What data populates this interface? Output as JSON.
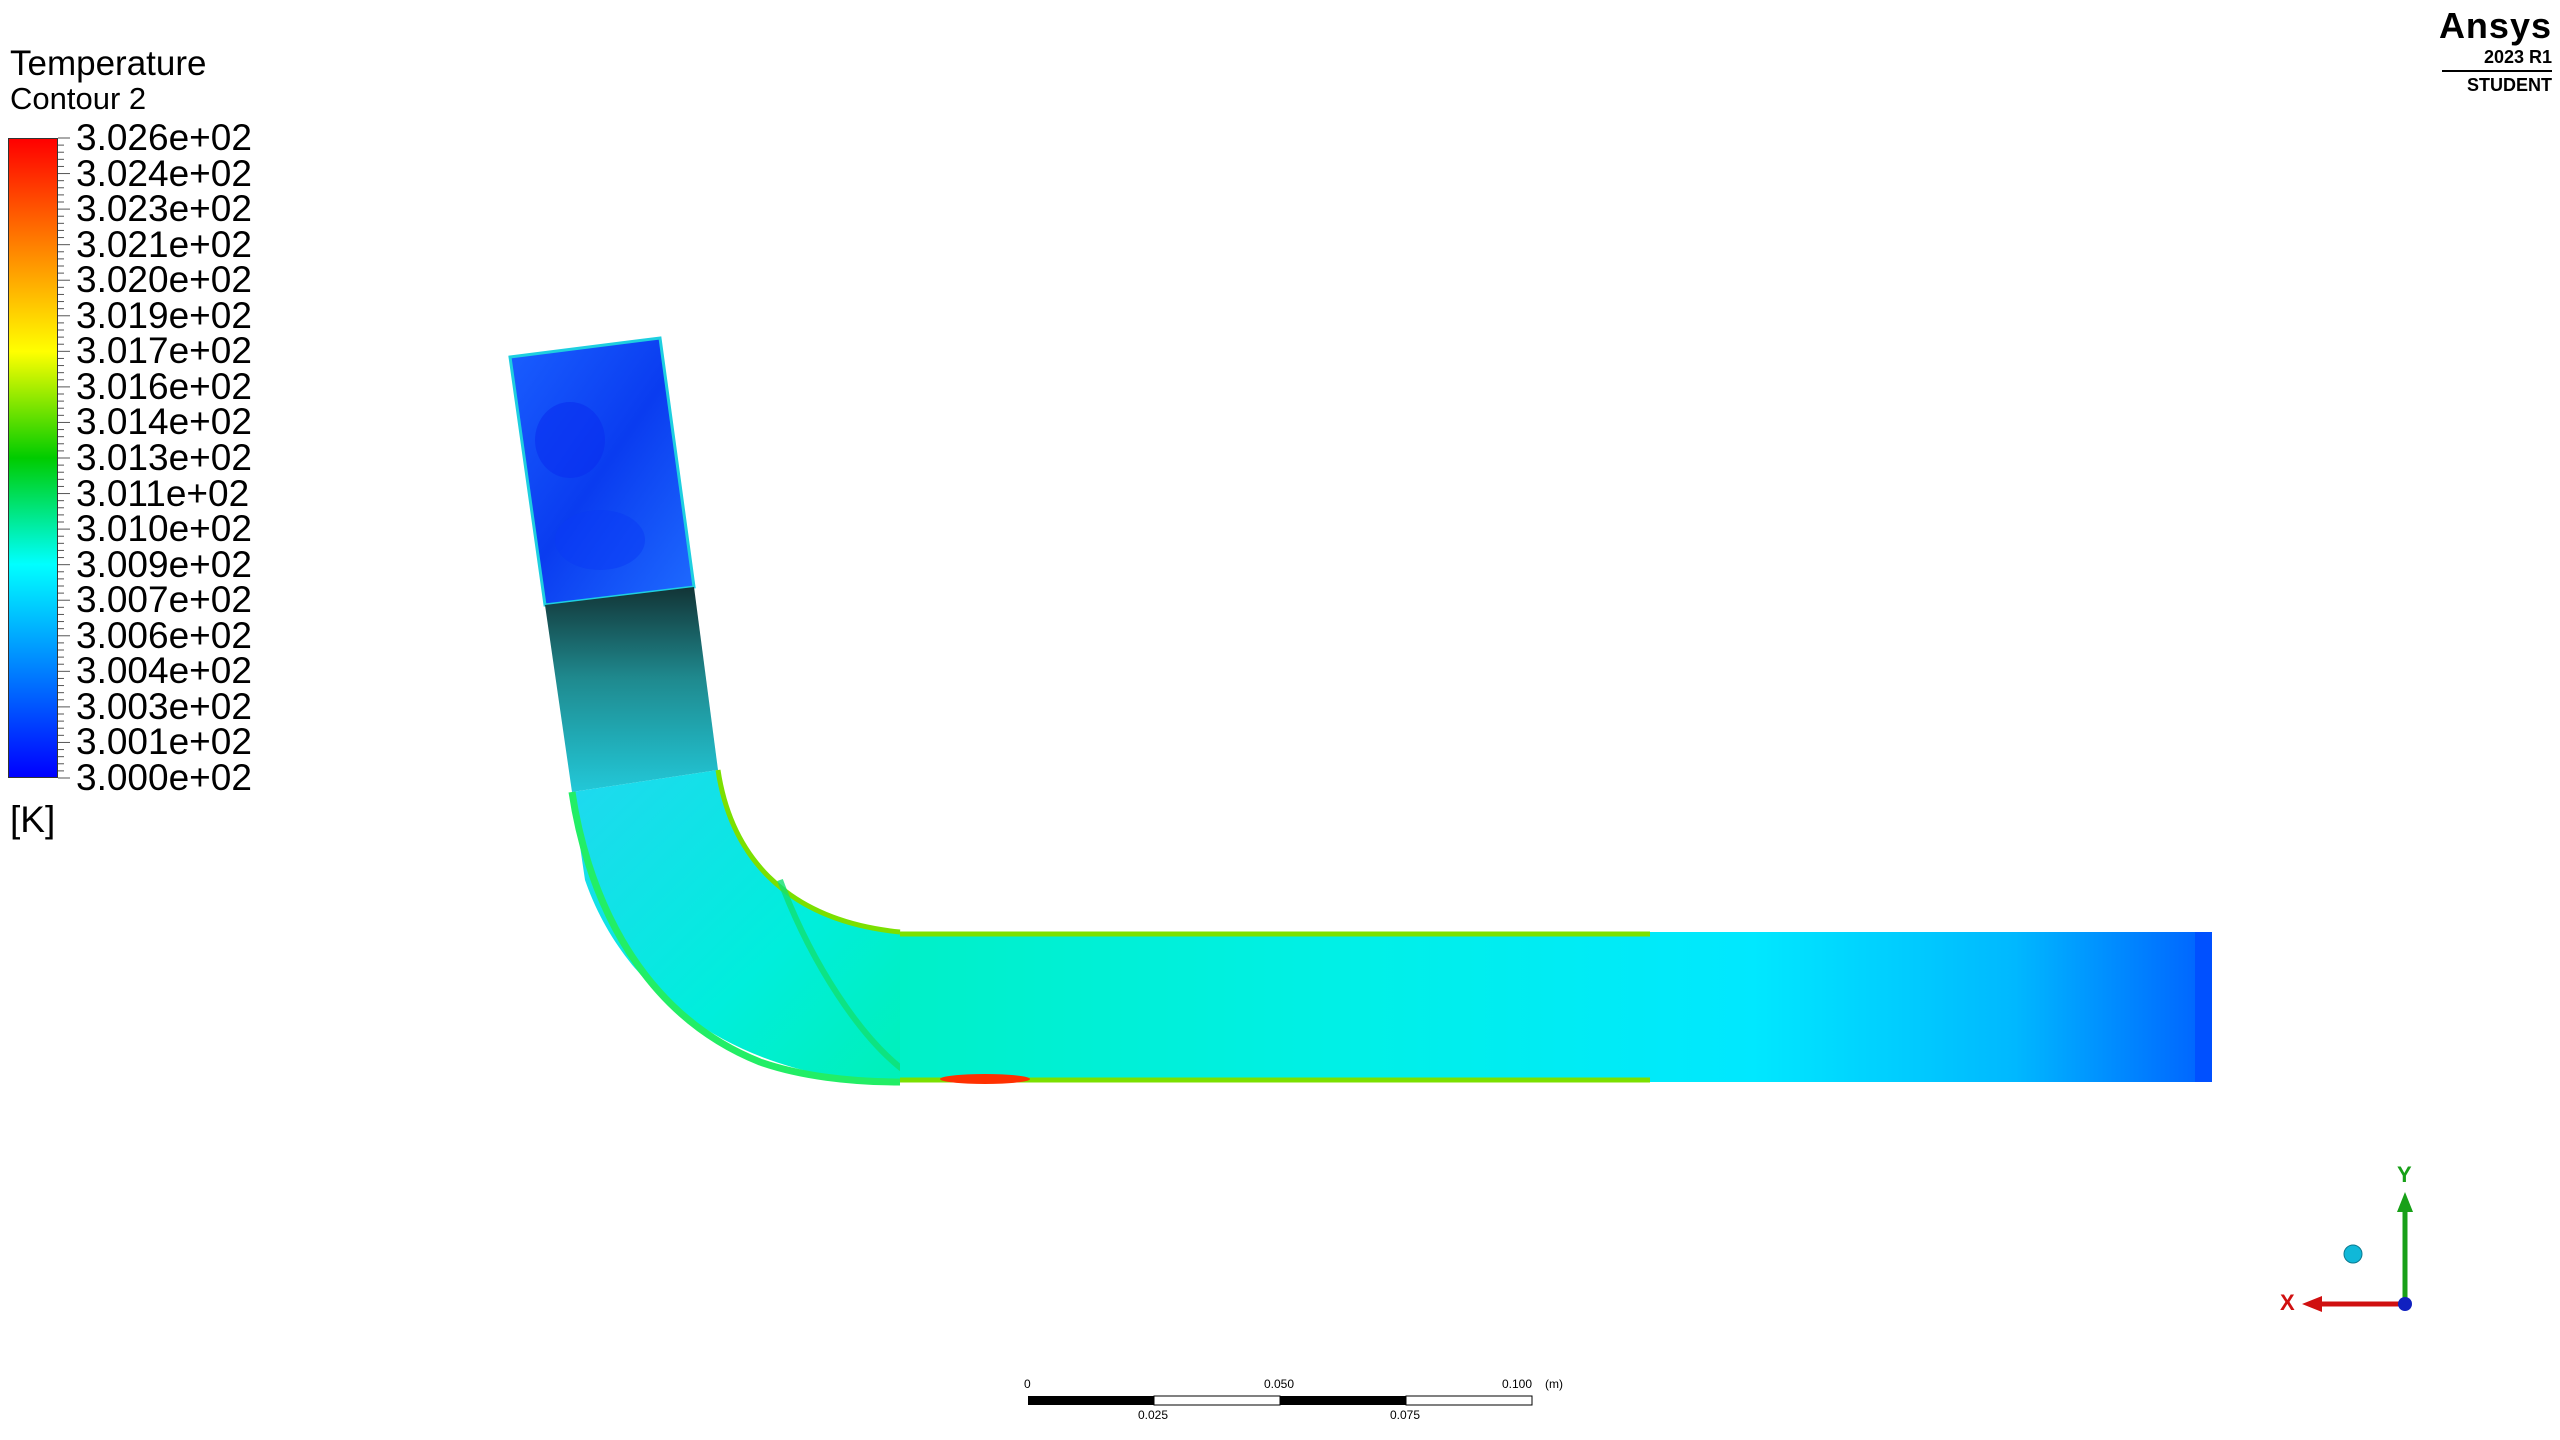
{
  "legend": {
    "title": "Temperature",
    "subtitle": "Contour 2",
    "labels": [
      "3.026e+02",
      "3.024e+02",
      "3.023e+02",
      "3.021e+02",
      "3.020e+02",
      "3.019e+02",
      "3.017e+02",
      "3.016e+02",
      "3.014e+02",
      "3.013e+02",
      "3.011e+02",
      "3.010e+02",
      "3.009e+02",
      "3.007e+02",
      "3.006e+02",
      "3.004e+02",
      "3.003e+02",
      "3.001e+02",
      "3.000e+02"
    ],
    "units": "[K]",
    "colormap": [
      "#ff0000",
      "#ff8000",
      "#ffff00",
      "#00cc00",
      "#00ffff",
      "#0080ff",
      "#0000ff"
    ]
  },
  "logo": {
    "brand": "Ansys",
    "version": "2023 R1",
    "edition": "STUDENT"
  },
  "scale_bar": {
    "top_labels": [
      "0",
      "0.050",
      "0.100"
    ],
    "bottom_labels": [
      "0.025",
      "0.075"
    ],
    "unit": "(m)"
  },
  "axes": {
    "x": "X",
    "y": "Y"
  }
}
